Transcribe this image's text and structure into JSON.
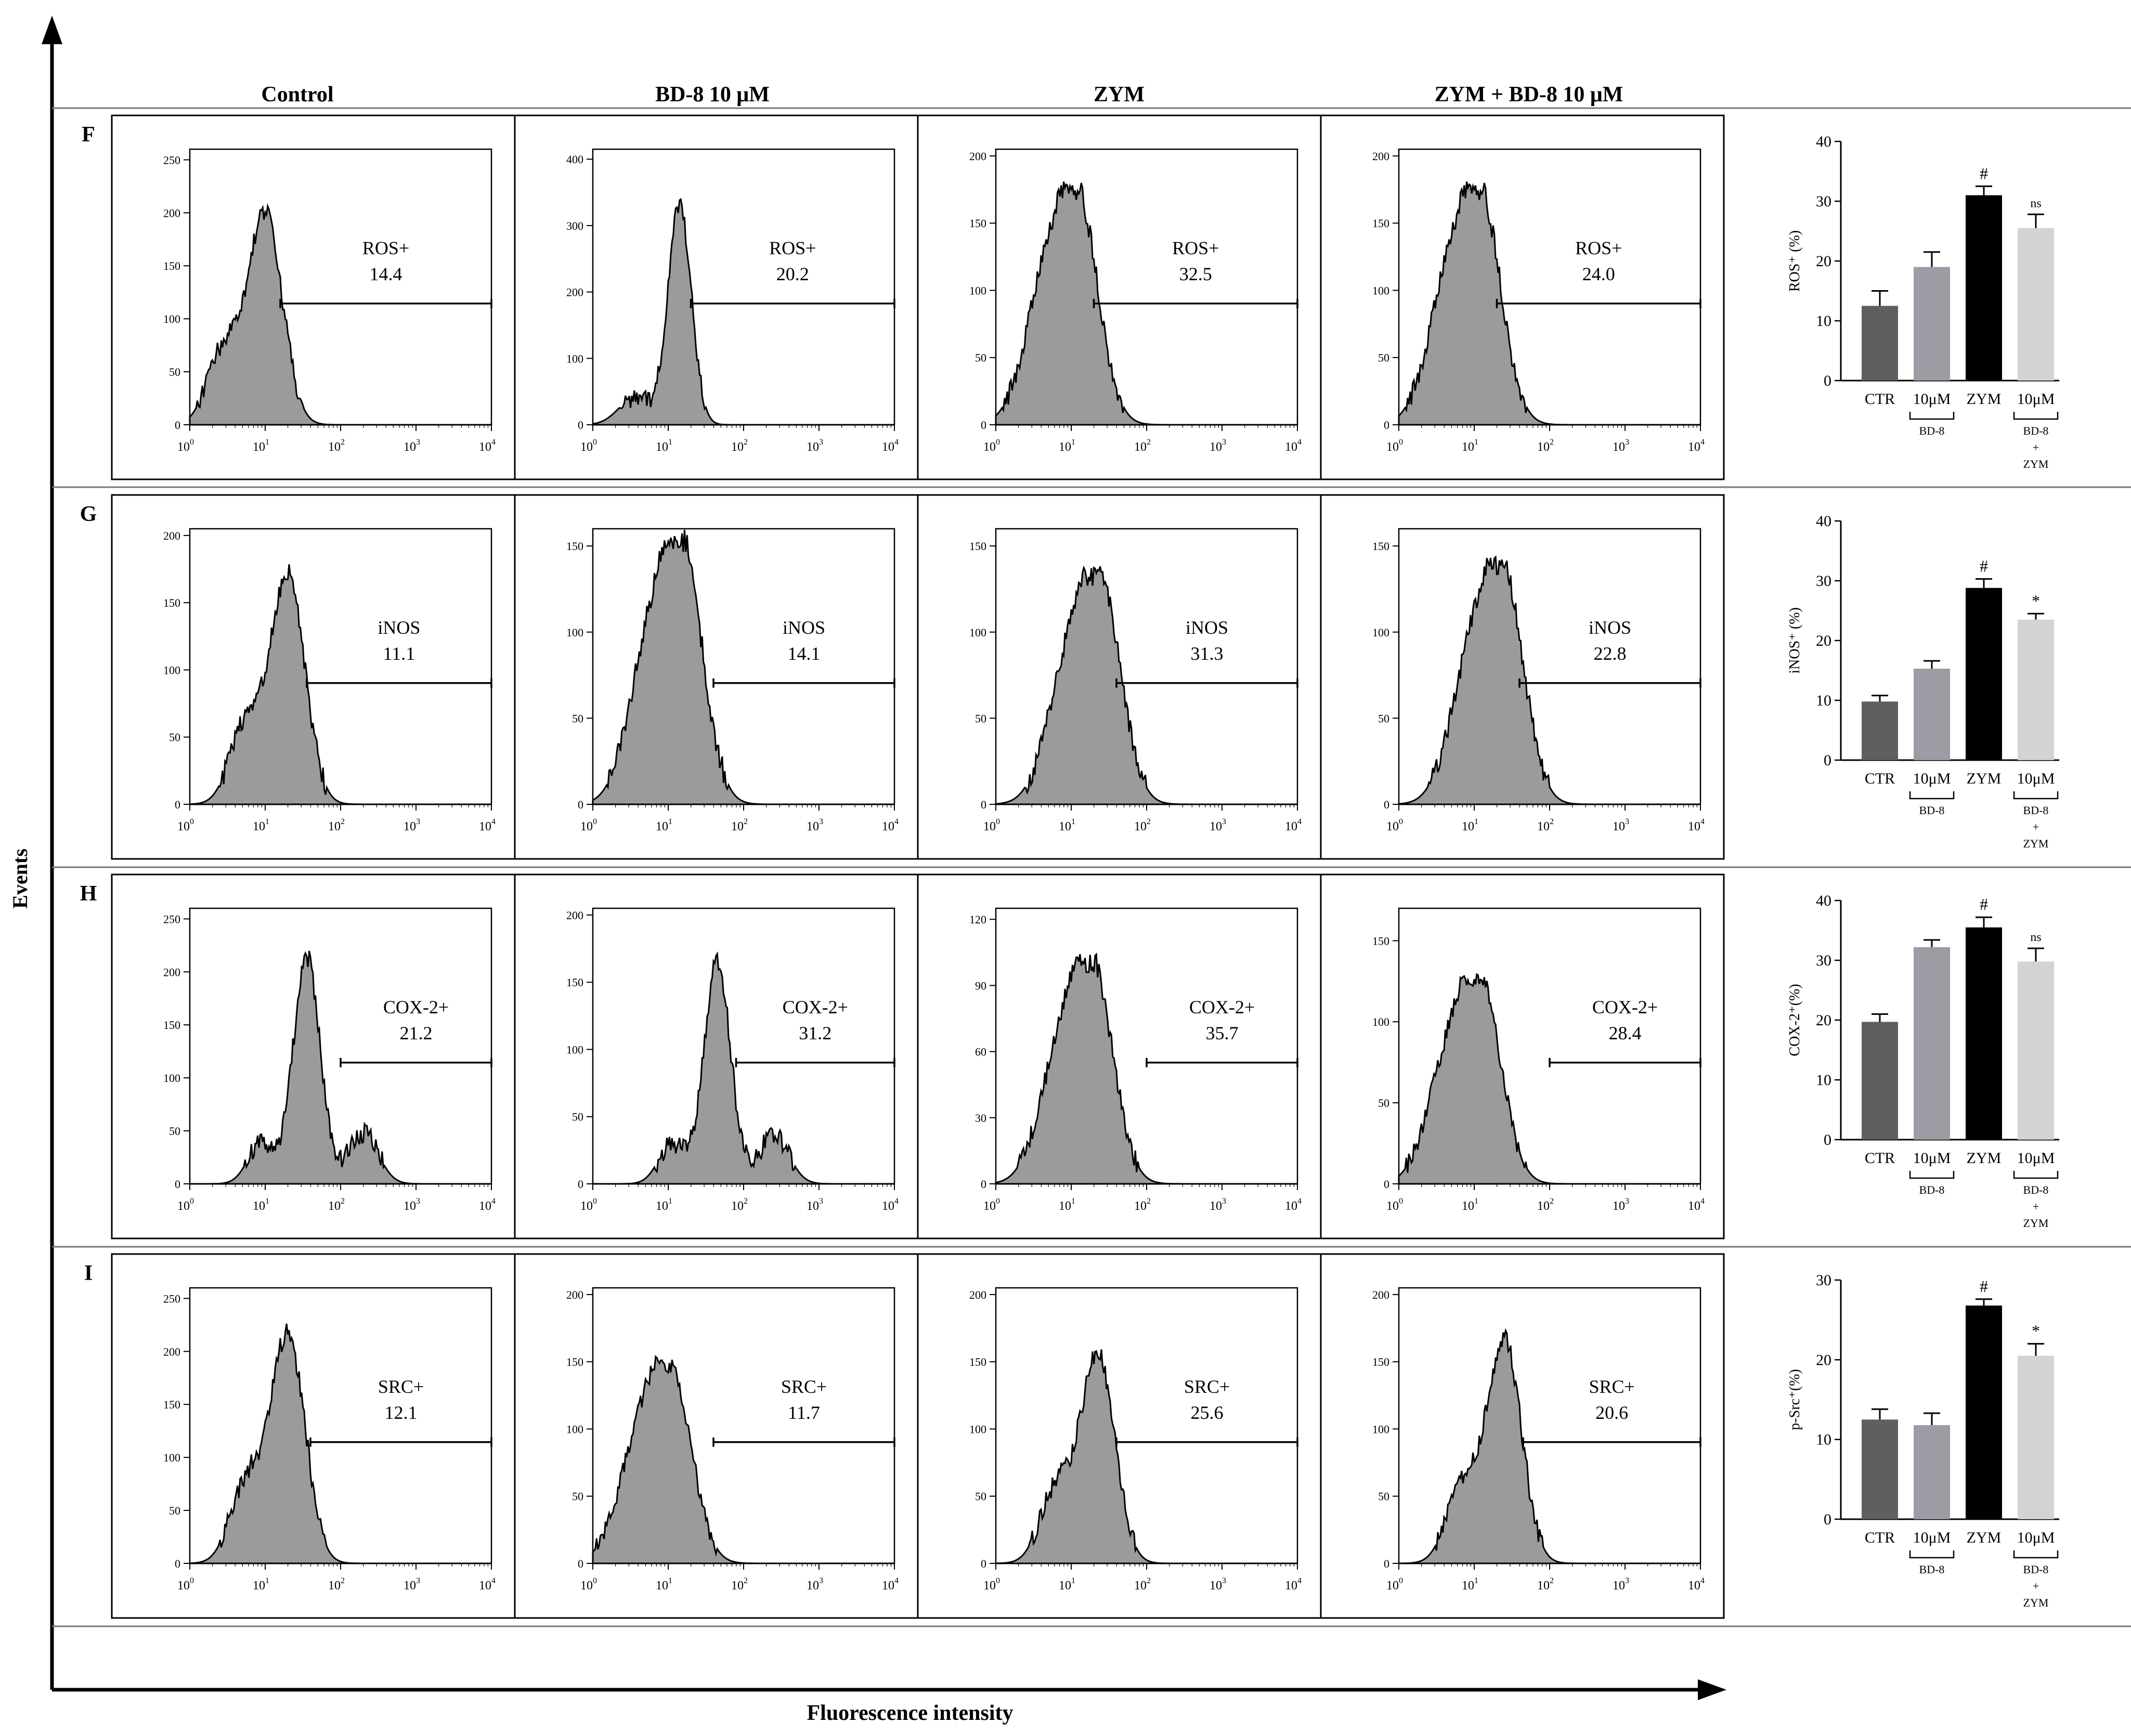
{
  "figure": {
    "y_axis_title": "Events",
    "x_axis_title": "Fluorescence intensity",
    "columns": [
      "Control",
      "BD-8 10 μM",
      "ZYM",
      "ZYM + BD-8 10 μM"
    ]
  },
  "chart_data": [
    {
      "type": "histogram-panel",
      "row_label": "F",
      "x_scale": "log",
      "x_ticks": [
        "10^0",
        "10^1",
        "10^2",
        "10^3",
        "10^4"
      ],
      "histograms": [
        {
          "condition": "Control",
          "y_ticks": [
            0,
            50,
            100,
            150,
            200,
            250
          ],
          "ymax": 260,
          "gate_label": "ROS+",
          "gate_value": "14.4",
          "gate_from_log": 1.2,
          "peak_log": 1.0,
          "peak_count": 200,
          "shape": "single"
        },
        {
          "condition": "BD-8 10 μM",
          "y_ticks": [
            0,
            100,
            200,
            300,
            400
          ],
          "ymax": 415,
          "gate_label": "ROS+",
          "gate_value": "20.2",
          "gate_from_log": 1.3,
          "peak_log": 1.15,
          "peak_count": 330,
          "shape": "narrow"
        },
        {
          "condition": "ZYM",
          "y_ticks": [
            0,
            50,
            100,
            150,
            200
          ],
          "ymax": 205,
          "gate_label": "ROS+",
          "gate_value": "32.5",
          "gate_from_log": 1.3,
          "peak_log": 1.1,
          "peak_count": 170,
          "shape": "broad"
        },
        {
          "condition": "ZYM + BD-8 10 μM",
          "y_ticks": [
            0,
            50,
            100,
            150,
            200
          ],
          "ymax": 205,
          "gate_label": "ROS+",
          "gate_value": "24.0",
          "gate_from_log": 1.3,
          "peak_log": 1.1,
          "peak_count": 170,
          "shape": "broad"
        }
      ],
      "bar_chart": {
        "ylabel": "ROS⁺ (%)",
        "ylim": [
          0,
          40
        ],
        "y_ticks": [
          0,
          10,
          20,
          30,
          40
        ],
        "categories": [
          "CTR",
          "10μM",
          "ZYM",
          "10μM"
        ],
        "group_labels": [
          "BD-8",
          "BD-8 + ZYM"
        ],
        "values": [
          12.5,
          19,
          31,
          25.5
        ],
        "errors": [
          2.5,
          2.5,
          1.5,
          2.3
        ],
        "significance": [
          "",
          "",
          "#",
          "ns"
        ],
        "colors": [
          "#5f5f5f",
          "#9c9ca4",
          "#000000",
          "#d3d3d3"
        ]
      }
    },
    {
      "type": "histogram-panel",
      "row_label": "G",
      "x_scale": "log",
      "x_ticks": [
        "10^0",
        "10^1",
        "10^2",
        "10^3",
        "10^4"
      ],
      "histograms": [
        {
          "condition": "Control",
          "y_ticks": [
            0,
            50,
            100,
            150,
            200
          ],
          "ymax": 205,
          "gate_label": "iNOS",
          "gate_value": "11.1",
          "gate_from_log": 1.55,
          "peak_log": 1.3,
          "peak_count": 170,
          "shape": "single"
        },
        {
          "condition": "BD-8 10 μM",
          "y_ticks": [
            0,
            50,
            100,
            150
          ],
          "ymax": 160,
          "gate_label": "iNOS",
          "gate_value": "14.1",
          "gate_from_log": 1.6,
          "peak_log": 1.2,
          "peak_count": 150,
          "shape": "broad"
        },
        {
          "condition": "ZYM",
          "y_ticks": [
            0,
            50,
            100,
            150
          ],
          "ymax": 160,
          "gate_label": "iNOS",
          "gate_value": "31.3",
          "gate_from_log": 1.6,
          "peak_log": 1.4,
          "peak_count": 130,
          "shape": "broad"
        },
        {
          "condition": "ZYM + BD-8 10 μM",
          "y_ticks": [
            0,
            50,
            100,
            150
          ],
          "ymax": 160,
          "gate_label": "iNOS",
          "gate_value": "22.8",
          "gate_from_log": 1.6,
          "peak_log": 1.4,
          "peak_count": 135,
          "shape": "broad"
        }
      ],
      "bar_chart": {
        "ylabel": "iNOS⁺ (%)",
        "ylim": [
          0,
          40
        ],
        "y_ticks": [
          0,
          10,
          20,
          30,
          40
        ],
        "categories": [
          "CTR",
          "10μM",
          "ZYM",
          "10μM"
        ],
        "group_labels": [
          "BD-8",
          "BD-8 + ZYM"
        ],
        "values": [
          9.8,
          15.3,
          28.8,
          23.5
        ],
        "errors": [
          1.0,
          1.3,
          1.5,
          1.0
        ],
        "significance": [
          "",
          "",
          "#",
          "*"
        ],
        "colors": [
          "#5f5f5f",
          "#9c9ca4",
          "#000000",
          "#d3d3d3"
        ]
      }
    },
    {
      "type": "histogram-panel",
      "row_label": "H",
      "x_scale": "log",
      "x_ticks": [
        "10^0",
        "10^1",
        "10^2",
        "10^3",
        "10^4"
      ],
      "histograms": [
        {
          "condition": "Control",
          "y_ticks": [
            0,
            50,
            100,
            150,
            200,
            250
          ],
          "ymax": 260,
          "gate_label": "COX-2+",
          "gate_value": "21.2",
          "gate_from_log": 2.0,
          "peak_log": 1.55,
          "peak_count": 215,
          "shape": "shoulder"
        },
        {
          "condition": "BD-8 10 μM",
          "y_ticks": [
            0,
            50,
            100,
            150,
            200
          ],
          "ymax": 205,
          "gate_label": "COX-2+",
          "gate_value": "31.2",
          "gate_from_log": 1.9,
          "peak_log": 1.65,
          "peak_count": 165,
          "shape": "shoulder"
        },
        {
          "condition": "ZYM",
          "y_ticks": [
            0,
            30,
            60,
            90,
            120
          ],
          "ymax": 125,
          "gate_label": "COX-2+",
          "gate_value": "35.7",
          "gate_from_log": 2.0,
          "peak_log": 1.3,
          "peak_count": 98,
          "shape": "broad"
        },
        {
          "condition": "ZYM + BD-8 10 μM",
          "y_ticks": [
            0,
            50,
            100,
            150
          ],
          "ymax": 170,
          "gate_label": "COX-2+",
          "gate_value": "28.4",
          "gate_from_log": 2.0,
          "peak_log": 1.1,
          "peak_count": 125,
          "shape": "broad"
        }
      ],
      "bar_chart": {
        "ylabel": "COX-2⁺(%)",
        "ylim": [
          0,
          40
        ],
        "y_ticks": [
          0,
          10,
          20,
          30,
          40
        ],
        "categories": [
          "CTR",
          "10μM",
          "ZYM",
          "10μM"
        ],
        "group_labels": [
          "BD-8",
          "BD-8 + ZYM"
        ],
        "values": [
          19.7,
          32.2,
          35.5,
          29.8
        ],
        "errors": [
          1.3,
          1.2,
          1.7,
          2.2
        ],
        "significance": [
          "",
          "",
          "#",
          "ns"
        ],
        "colors": [
          "#5f5f5f",
          "#9c9ca4",
          "#000000",
          "#d3d3d3"
        ]
      }
    },
    {
      "type": "histogram-panel",
      "row_label": "I",
      "x_scale": "log",
      "x_ticks": [
        "10^0",
        "10^1",
        "10^2",
        "10^3",
        "10^4"
      ],
      "histograms": [
        {
          "condition": "Control",
          "y_ticks": [
            0,
            50,
            100,
            150,
            200,
            250
          ],
          "ymax": 260,
          "gate_label": "SRC+",
          "gate_value": "12.1",
          "gate_from_log": 1.6,
          "peak_log": 1.3,
          "peak_count": 215,
          "shape": "single"
        },
        {
          "condition": "BD-8 10 μM",
          "y_ticks": [
            0,
            50,
            100,
            150,
            200
          ],
          "ymax": 205,
          "gate_label": "SRC+",
          "gate_value": "11.7",
          "gate_from_log": 1.6,
          "peak_log": 1.05,
          "peak_count": 145,
          "shape": "broad"
        },
        {
          "condition": "ZYM",
          "y_ticks": [
            0,
            50,
            100,
            150,
            200
          ],
          "ymax": 205,
          "gate_label": "SRC+",
          "gate_value": "25.6",
          "gate_from_log": 1.6,
          "peak_log": 1.35,
          "peak_count": 155,
          "shape": "single"
        },
        {
          "condition": "ZYM + BD-8 10 μM",
          "y_ticks": [
            0,
            50,
            100,
            150,
            200
          ],
          "ymax": 205,
          "gate_label": "SRC+",
          "gate_value": "20.6",
          "gate_from_log": 1.65,
          "peak_log": 1.4,
          "peak_count": 165,
          "shape": "single"
        }
      ],
      "bar_chart": {
        "ylabel": "p-Src⁺(%)",
        "ylim": [
          0,
          30
        ],
        "y_ticks": [
          0,
          10,
          20,
          30
        ],
        "categories": [
          "CTR",
          "10μM",
          "ZYM",
          "10μM"
        ],
        "group_labels": [
          "BD-8",
          "BD-8 + ZYM"
        ],
        "values": [
          12.5,
          11.8,
          26.8,
          20.5
        ],
        "errors": [
          1.3,
          1.5,
          0.8,
          1.5
        ],
        "significance": [
          "",
          "",
          "#",
          "*"
        ],
        "colors": [
          "#5f5f5f",
          "#9c9ca4",
          "#000000",
          "#d3d3d3"
        ]
      }
    }
  ]
}
